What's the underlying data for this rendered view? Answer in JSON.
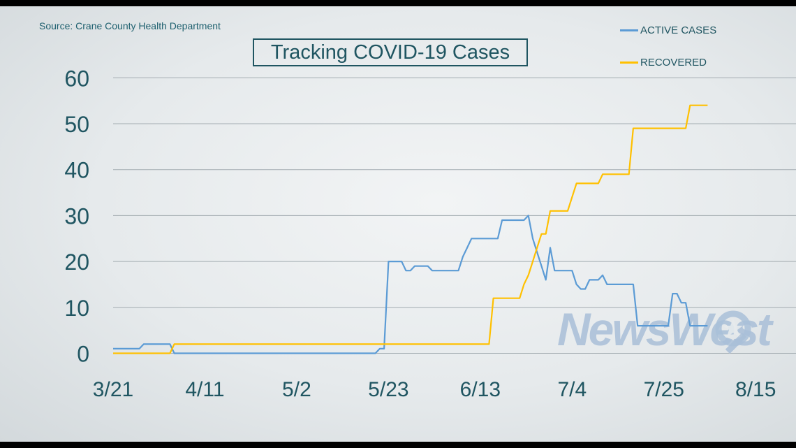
{
  "source": "Source: Crane County Health Department",
  "watermark": "NewsWest",
  "colors": {
    "background": "#e6eaec",
    "text": "#1f5561",
    "grid": "#a3acb1",
    "active": "#5b9bd5",
    "recovered": "#ffc000",
    "watermark": "#a9bfd8"
  },
  "chart_data": {
    "type": "line",
    "title": "Tracking COVID-19 Cases",
    "xlabel": "",
    "ylabel": "",
    "x_unit": "day",
    "x_ticks": [
      "3/21",
      "4/11",
      "5/2",
      "5/23",
      "6/13",
      "7/4",
      "7/25",
      "8/15"
    ],
    "xlim": [
      "3/21",
      "9/3"
    ],
    "ylim": [
      0,
      60
    ],
    "y_ticks": [
      0,
      10,
      20,
      30,
      40,
      50,
      60
    ],
    "grid": "horizontal",
    "legend_position": "top-right",
    "series": [
      {
        "name": "ACTIVE CASES",
        "color": "#5b9bd5",
        "points": [
          [
            "3/21",
            1
          ],
          [
            "3/27",
            1
          ],
          [
            "3/28",
            2
          ],
          [
            "4/3",
            2
          ],
          [
            "4/4",
            0
          ],
          [
            "5/20",
            0
          ],
          [
            "5/21",
            1
          ],
          [
            "5/22",
            1
          ],
          [
            "5/23",
            20
          ],
          [
            "5/26",
            20
          ],
          [
            "5/27",
            18
          ],
          [
            "5/28",
            18
          ],
          [
            "5/29",
            19
          ],
          [
            "6/1",
            19
          ],
          [
            "6/2",
            18
          ],
          [
            "6/8",
            18
          ],
          [
            "6/9",
            21
          ],
          [
            "6/10",
            23
          ],
          [
            "6/11",
            25
          ],
          [
            "6/17",
            25
          ],
          [
            "6/18",
            29
          ],
          [
            "6/23",
            29
          ],
          [
            "6/24",
            30
          ],
          [
            "6/25",
            25
          ],
          [
            "6/26",
            22
          ],
          [
            "6/27",
            19
          ],
          [
            "6/28",
            16
          ],
          [
            "6/29",
            23
          ],
          [
            "6/30",
            18
          ],
          [
            "7/4",
            18
          ],
          [
            "7/5",
            15
          ],
          [
            "7/6",
            14
          ],
          [
            "7/7",
            14
          ],
          [
            "7/8",
            16
          ],
          [
            "7/10",
            16
          ],
          [
            "7/11",
            17
          ],
          [
            "7/12",
            15
          ],
          [
            "7/18",
            15
          ],
          [
            "7/19",
            6
          ],
          [
            "7/26",
            6
          ],
          [
            "7/27",
            13
          ],
          [
            "7/28",
            13
          ],
          [
            "7/29",
            11
          ],
          [
            "7/30",
            11
          ],
          [
            "7/31",
            6
          ],
          [
            "8/4",
            6
          ]
        ]
      },
      {
        "name": "RECOVERED",
        "color": "#ffc000",
        "points": [
          [
            "3/21",
            0
          ],
          [
            "4/3",
            0
          ],
          [
            "4/4",
            2
          ],
          [
            "6/15",
            2
          ],
          [
            "6/16",
            12
          ],
          [
            "6/22",
            12
          ],
          [
            "6/23",
            15
          ],
          [
            "6/24",
            17
          ],
          [
            "6/25",
            20
          ],
          [
            "6/26",
            23
          ],
          [
            "6/27",
            26
          ],
          [
            "6/28",
            26
          ],
          [
            "6/29",
            31
          ],
          [
            "7/3",
            31
          ],
          [
            "7/4",
            34
          ],
          [
            "7/5",
            37
          ],
          [
            "7/10",
            37
          ],
          [
            "7/11",
            39
          ],
          [
            "7/17",
            39
          ],
          [
            "7/18",
            49
          ],
          [
            "7/30",
            49
          ],
          [
            "7/31",
            54
          ],
          [
            "8/4",
            54
          ]
        ]
      }
    ]
  }
}
